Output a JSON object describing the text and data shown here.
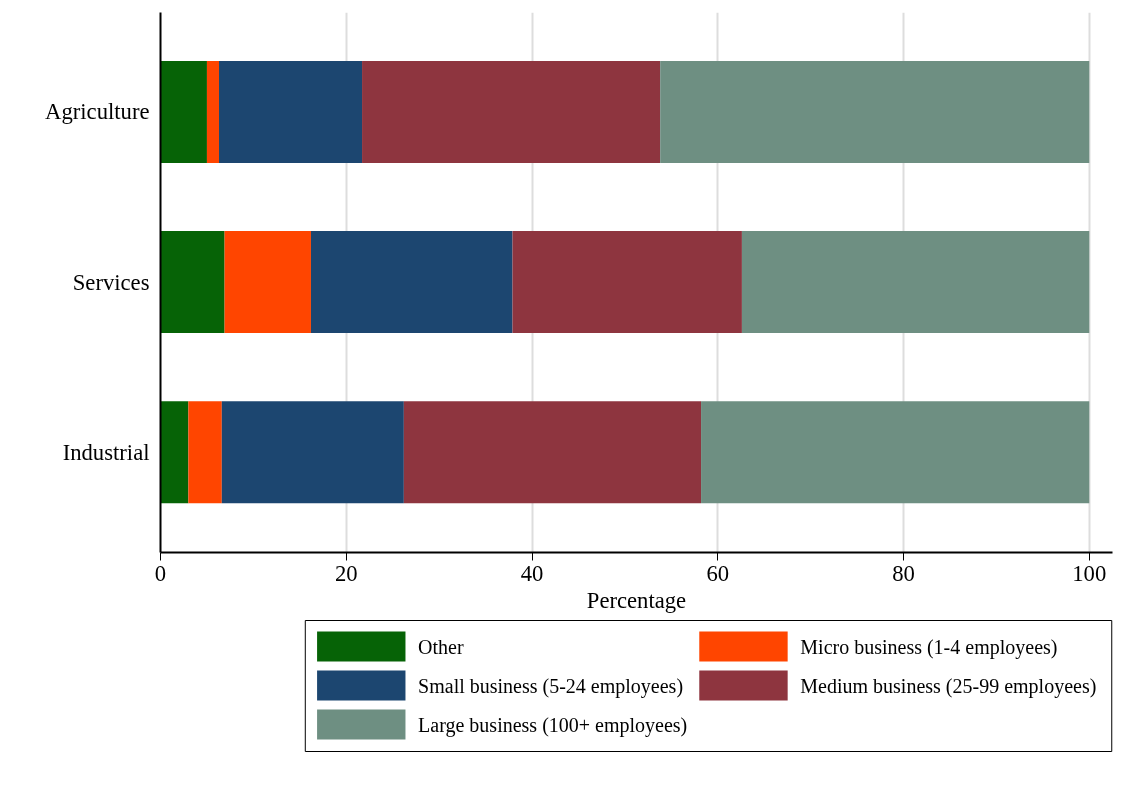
{
  "chart_data": {
    "type": "bar",
    "orientation": "horizontal",
    "stacked": true,
    "xlabel": "Percentage",
    "categories": [
      "Agriculture",
      "Services",
      "Industrial"
    ],
    "series": [
      {
        "name": "Other",
        "color": "#066306",
        "values": [
          5.0,
          6.9,
          3.0
        ]
      },
      {
        "name": "Micro business (1-4 employees)",
        "color": "#ff4500",
        "values": [
          1.3,
          9.3,
          3.6
        ]
      },
      {
        "name": "Small business (5-24 employees)",
        "color": "#1c4670",
        "values": [
          15.4,
          21.7,
          19.6
        ]
      },
      {
        "name": "Medium business (25-99 employees)",
        "color": "#8e353f",
        "values": [
          32.1,
          24.7,
          32.0
        ]
      },
      {
        "name": "Large business (100+ employees)",
        "color": "#6e8f82",
        "values": [
          46.2,
          37.4,
          41.8
        ]
      }
    ],
    "xlim": [
      0,
      102.5
    ],
    "xticks": [
      0,
      20,
      40,
      60,
      80,
      100
    ],
    "grid": "x",
    "legend": "bottom"
  }
}
